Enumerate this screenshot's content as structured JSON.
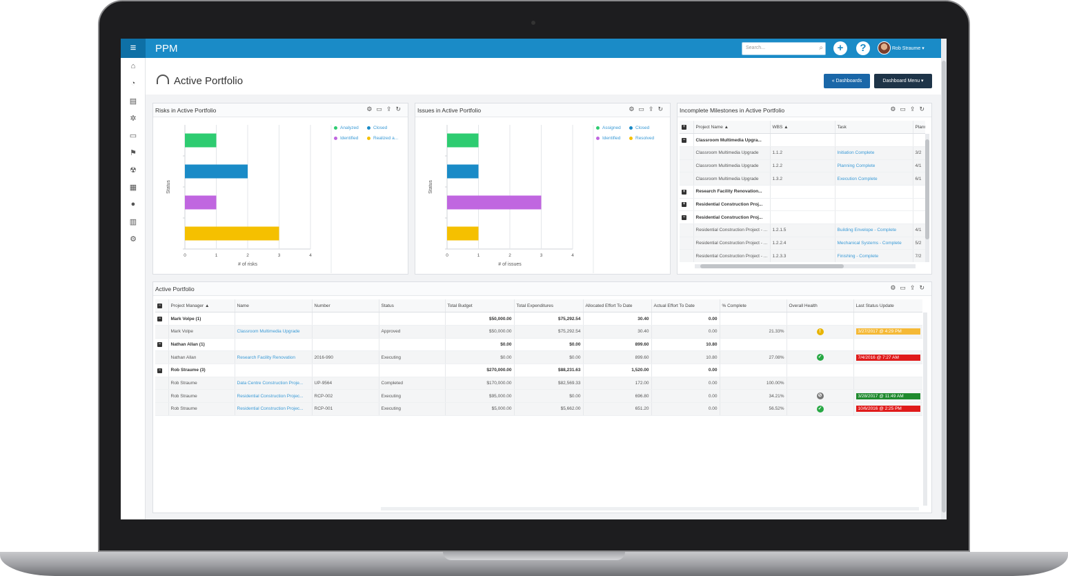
{
  "app": {
    "title": "PPM",
    "menu_icon": "hamburger-icon"
  },
  "topbar": {
    "search_placeholder": "Search...",
    "user_name": "Rob Straume",
    "add_symbol": "+",
    "help_symbol": "?"
  },
  "sidebar": {
    "icons": [
      "home-icon",
      "dashboard-icon",
      "document-icon",
      "gear-network-icon",
      "folder-icon",
      "flag-icon",
      "radiation-icon",
      "card-icon",
      "person-icon",
      "report-icon",
      "settings-icon"
    ]
  },
  "page": {
    "title": "Active Portfolio",
    "dashboards_button": "« Dashboards",
    "dashboard_menu_button": "Dashboard Menu ▾"
  },
  "risks_panel": {
    "title": "Risks in Active Portfolio",
    "legend": [
      {
        "label": "Analyzed",
        "color": "#2ecc71"
      },
      {
        "label": "Closed",
        "color": "#1a8bc7"
      },
      {
        "label": "Identified",
        "color": "#c066e0"
      },
      {
        "label": "Realized a...",
        "color": "#f5c000"
      }
    ]
  },
  "issues_panel": {
    "title": "Issues in Active Portfolio",
    "legend": [
      {
        "label": "Assigned",
        "color": "#2ecc71"
      },
      {
        "label": "Closed",
        "color": "#1a8bc7"
      },
      {
        "label": "Identified",
        "color": "#c066e0"
      },
      {
        "label": "Resolved",
        "color": "#f5c000"
      }
    ]
  },
  "chart_data": [
    {
      "type": "bar",
      "orientation": "horizontal",
      "categories": [
        "Analyzed",
        "Closed",
        "Identified",
        "Realized a..."
      ],
      "values": [
        1,
        2,
        1,
        3
      ],
      "colors": [
        "#2ecc71",
        "#1a8bc7",
        "#c066e0",
        "#f5c000"
      ],
      "title": "",
      "xlabel": "# of risks",
      "ylabel": "Status",
      "xlim": [
        0,
        4
      ],
      "xticks": [
        "0",
        "1",
        "2",
        "3",
        "4"
      ],
      "grid": true,
      "legend": "top-right"
    },
    {
      "type": "bar",
      "orientation": "horizontal",
      "categories": [
        "Assigned",
        "Closed",
        "Identified",
        "Resolved"
      ],
      "values": [
        1,
        1,
        3,
        1
      ],
      "colors": [
        "#2ecc71",
        "#1a8bc7",
        "#c066e0",
        "#f5c000"
      ],
      "title": "",
      "xlabel": "# of issues",
      "ylabel": "Status",
      "xlim": [
        0,
        4
      ],
      "xticks": [
        "0",
        "1",
        "2",
        "3",
        "4"
      ],
      "grid": true,
      "legend": "top-right"
    }
  ],
  "milestones_panel": {
    "title": "Incomplete Milestones in Active Portfolio",
    "columns": [
      "Project Name ▲",
      "WBS ▲",
      "Task",
      "Planne"
    ],
    "rows": [
      {
        "kind": "group",
        "expand": "−",
        "project": "Classroom Multimedia Upgra...",
        "wbs": "",
        "task": "",
        "planned": ""
      },
      {
        "kind": "row",
        "project": "Classroom Multimedia Upgrade",
        "wbs": "1.1.2",
        "task": "Initiation Complete",
        "planned": "3/2"
      },
      {
        "kind": "row",
        "project": "Classroom Multimedia Upgrade",
        "wbs": "1.2.2",
        "task": "Planning Complete",
        "planned": "4/1"
      },
      {
        "kind": "row",
        "project": "Classroom Multimedia Upgrade",
        "wbs": "1.3.2",
        "task": "Execution Complete",
        "planned": "6/1"
      },
      {
        "kind": "group",
        "expand": "+",
        "project": "Research Facility Renovation...",
        "wbs": "",
        "task": "",
        "planned": ""
      },
      {
        "kind": "group",
        "expand": "+",
        "project": "Residential Construction Proj...",
        "wbs": "",
        "task": "",
        "planned": ""
      },
      {
        "kind": "group",
        "expand": "−",
        "project": "Residential Construction Proj...",
        "wbs": "",
        "task": "",
        "planned": ""
      },
      {
        "kind": "row",
        "project": "Residential Construction Project - ...",
        "wbs": "1.2.1.5",
        "task": "Building Envelope - Complete",
        "planned": "4/1"
      },
      {
        "kind": "row",
        "project": "Residential Construction Project - ...",
        "wbs": "1.2.2.4",
        "task": "Mechanical Systems - Complete",
        "planned": "5/2"
      },
      {
        "kind": "row",
        "project": "Residential Construction Project - ...",
        "wbs": "1.2.3.3",
        "task": "Finishing - Complete",
        "planned": "7/2"
      }
    ]
  },
  "portfolio_panel": {
    "title": "Active Portfolio",
    "columns": [
      "Project Manager ▲",
      "Name",
      "Number",
      "Status",
      "Total Budget",
      "Total Expenditures",
      "Allocated Effort To Date",
      "Actual Effort To Date",
      "% Complete",
      "Overall Health",
      "Last Status Update"
    ],
    "rows": [
      {
        "kind": "group",
        "pm": "Mark Volpe (1)",
        "name": "",
        "number": "",
        "status": "",
        "budget": "$50,000.00",
        "expend": "$75,292.54",
        "alloc": "30.40",
        "actual": "0.00",
        "pct": "",
        "health": "",
        "update": "",
        "update_color": ""
      },
      {
        "kind": "row",
        "pm": "Mark Volpe",
        "name": "Classroom Multimedia Upgrade",
        "number": "",
        "status": "Approved",
        "budget": "$50,000.00",
        "expend": "$75,292.54",
        "alloc": "30.40",
        "actual": "0.00",
        "pct": "21.33%",
        "health": "!",
        "health_color": "#e8b400",
        "update": "3/27/2017 @ 4:29 PM",
        "update_color": "#f5b936"
      },
      {
        "kind": "group",
        "pm": "Nathan Allan (1)",
        "name": "",
        "number": "",
        "status": "",
        "budget": "$0.00",
        "expend": "$0.00",
        "alloc": "899.60",
        "actual": "10.80",
        "pct": "",
        "health": "",
        "update": "",
        "update_color": ""
      },
      {
        "kind": "row",
        "pm": "Nathan Allan",
        "name": "Research Facility Renovation",
        "number": "2016-990",
        "status": "Executing",
        "budget": "$0.00",
        "expend": "$0.00",
        "alloc": "899.60",
        "actual": "10.80",
        "pct": "27.08%",
        "health": "✓",
        "health_color": "#27a844",
        "update": "7/4/2016 @ 7:27 AM",
        "update_color": "#e01b1b"
      },
      {
        "kind": "group",
        "pm": "Rob Straume (3)",
        "name": "",
        "number": "",
        "status": "",
        "budget": "$270,000.00",
        "expend": "$88,231.63",
        "alloc": "1,520.00",
        "actual": "0.00",
        "pct": "",
        "health": "",
        "update": "",
        "update_color": ""
      },
      {
        "kind": "row",
        "pm": "Rob Straume",
        "name": "Data Centre Construction Proje...",
        "number": "UP-9564",
        "status": "Completed",
        "budget": "$170,000.00",
        "expend": "$82,569.33",
        "alloc": "172.00",
        "actual": "0.00",
        "pct": "100.00%",
        "health": "",
        "update": "",
        "update_color": ""
      },
      {
        "kind": "row",
        "pm": "Rob Straume",
        "name": "Residential Construction Projec...",
        "number": "RCP-002",
        "status": "Executing",
        "budget": "$95,000.00",
        "expend": "$0.00",
        "alloc": "696.80",
        "actual": "0.00",
        "pct": "34.21%",
        "health": "⊘",
        "health_color": "#777777",
        "update": "3/28/2017 @ 11:49 AM",
        "update_color": "#1f8a2e"
      },
      {
        "kind": "row",
        "pm": "Rob Straume",
        "name": "Residential Construction Projec...",
        "number": "RCP-001",
        "status": "Executing",
        "budget": "$5,000.00",
        "expend": "$5,662.00",
        "alloc": "651.20",
        "actual": "0.00",
        "pct": "56.52%",
        "health": "✓",
        "health_color": "#27a844",
        "update": "10/6/2016 @ 2:25 PM",
        "update_color": "#e01b1b"
      }
    ]
  }
}
